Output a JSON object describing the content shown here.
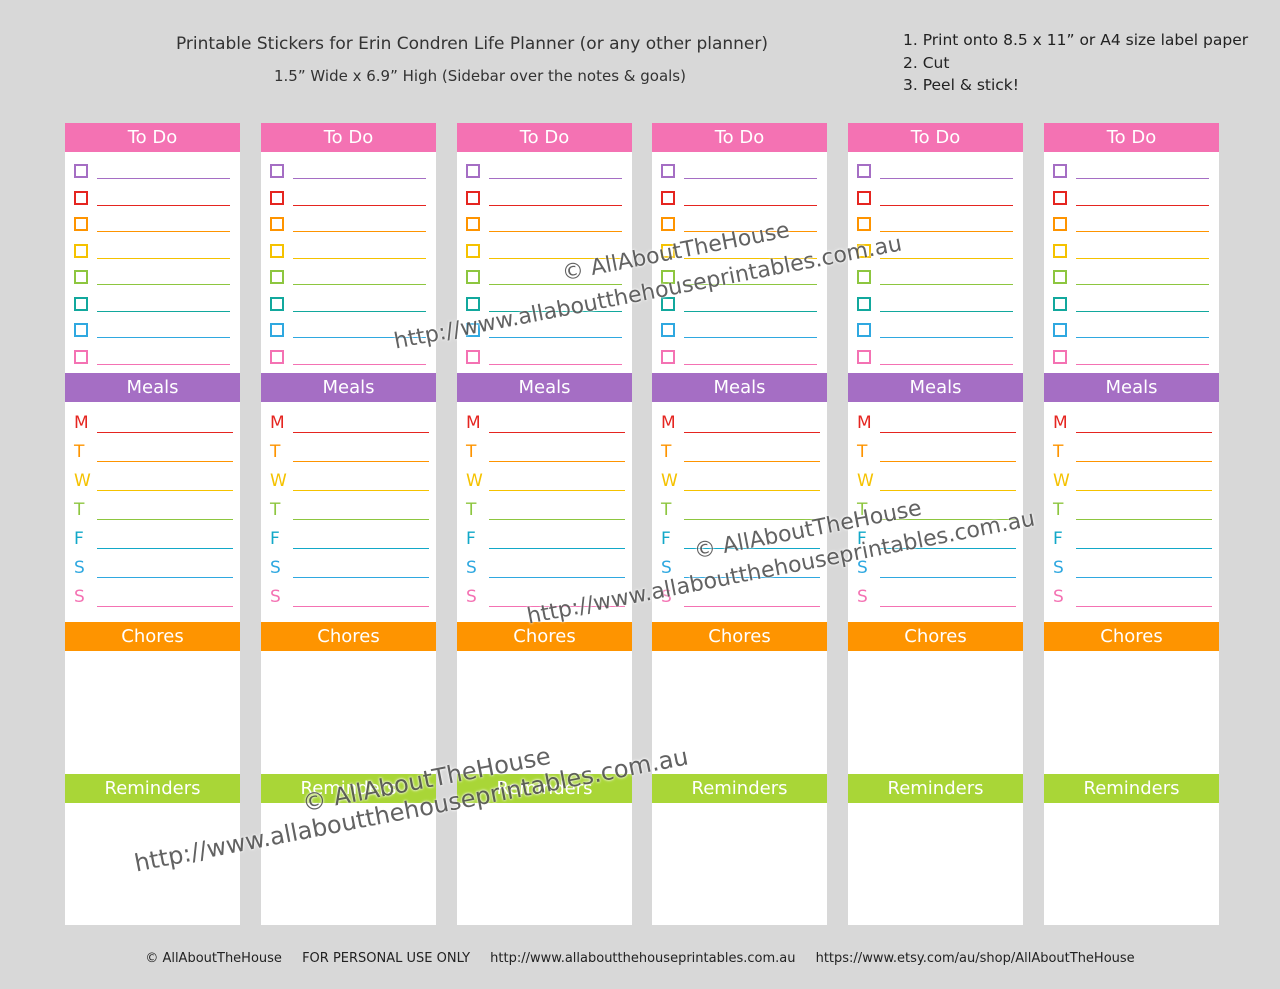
{
  "header": {
    "title": "Printable Stickers for Erin Condren Life Planner (or any other planner)",
    "subtitle": "1.5” Wide x 6.9” High (Sidebar over the notes & goals)"
  },
  "instructions": [
    "1. Print onto 8.5 x 11” or A4 size label paper",
    "2. Cut",
    "3. Peel & stick!"
  ],
  "sections": {
    "todo": "To Do",
    "meals": "Meals",
    "chores": "Chores",
    "reminders": "Reminders"
  },
  "colors": {
    "todo": "#f472b3",
    "meals": "#a56ec4",
    "chores": "#fe9400",
    "reminders": "#a9d637",
    "checkboxes": [
      "#a56ec4",
      "#e52520",
      "#fe9400",
      "#f5c200",
      "#8dc63f",
      "#12a89d",
      "#2fa8e0",
      "#f472b3"
    ],
    "days": [
      "#e52520",
      "#fe9400",
      "#f5c200",
      "#8dc63f",
      "#12a8c8",
      "#2fa8e0",
      "#f472b3"
    ]
  },
  "days": [
    "M",
    "T",
    "W",
    "T",
    "F",
    "S",
    "S"
  ],
  "watermark": {
    "copyright": "© AllAboutTheHouse",
    "url": "http://www.allaboutthehouseprintables.com.au"
  },
  "footer": {
    "copyright": "© AllAboutTheHouse",
    "notice": "FOR PERSONAL USE ONLY",
    "website": "http://www.allaboutthehouseprintables.com.au",
    "etsy": "https://www.etsy.com/au/shop/AllAboutTheHouse"
  }
}
